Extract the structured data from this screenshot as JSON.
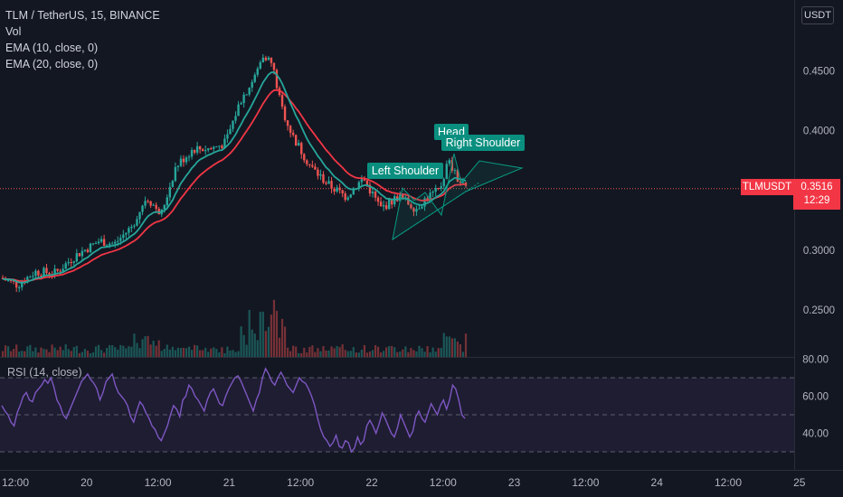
{
  "legend": {
    "symbol": "TLM / TetherUS, 15, BINANCE",
    "vol": "Vol",
    "ema10": "EMA (10, close, 0)",
    "ema20": "EMA (20, close, 0)",
    "rsi": "RSI (14, close)"
  },
  "currency_button": "USDT",
  "price_tag": {
    "symbol": "TLMUSDT",
    "price": "0.3516",
    "countdown": "12:29"
  },
  "colors": {
    "background": "#131722",
    "up": "#26a69a",
    "down": "#ef5350",
    "ema10": "#26a69a",
    "ema20": "#f23645",
    "rsi": "#7e57c2",
    "pattern": "#089981"
  },
  "chart_data": [
    {
      "type": "candlestick",
      "y_axis_ticks": [
        "0.4500",
        "0.4000",
        "0.3500",
        "0.3000",
        "0.2500"
      ],
      "ylim": [
        0.225,
        0.485
      ],
      "x_ticks": [
        "12:00",
        "20",
        "12:00",
        "21",
        "12:00",
        "22",
        "12:00",
        "23",
        "12:00",
        "24",
        "12:00",
        "25"
      ],
      "current_price": 0.3516,
      "close_path": [
        {
          "t": 0.0,
          "y": 0.277
        },
        {
          "t": 0.06,
          "y": 0.271
        },
        {
          "t": 0.12,
          "y": 0.282
        },
        {
          "t": 0.19,
          "y": 0.281
        },
        {
          "t": 0.26,
          "y": 0.296
        },
        {
          "t": 0.34,
          "y": 0.308
        },
        {
          "t": 0.39,
          "y": 0.305
        },
        {
          "t": 0.45,
          "y": 0.32
        },
        {
          "t": 0.5,
          "y": 0.345
        },
        {
          "t": 0.55,
          "y": 0.33
        },
        {
          "t": 0.6,
          "y": 0.37
        },
        {
          "t": 0.66,
          "y": 0.385
        },
        {
          "t": 0.72,
          "y": 0.385
        },
        {
          "t": 0.77,
          "y": 0.39
        },
        {
          "t": 0.82,
          "y": 0.425
        },
        {
          "t": 0.87,
          "y": 0.445
        },
        {
          "t": 0.9,
          "y": 0.465
        },
        {
          "t": 0.93,
          "y": 0.455
        },
        {
          "t": 0.96,
          "y": 0.42
        },
        {
          "t": 1.0,
          "y": 0.395
        },
        {
          "t": 1.06,
          "y": 0.37
        },
        {
          "t": 1.12,
          "y": 0.355
        },
        {
          "t": 1.18,
          "y": 0.345
        },
        {
          "t": 1.24,
          "y": 0.36
        },
        {
          "t": 1.3,
          "y": 0.335
        },
        {
          "t": 1.36,
          "y": 0.345
        },
        {
          "t": 1.42,
          "y": 0.335
        },
        {
          "t": 1.46,
          "y": 0.345
        },
        {
          "t": 1.5,
          "y": 0.35
        },
        {
          "t": 1.53,
          "y": 0.375
        },
        {
          "t": 1.56,
          "y": 0.36
        },
        {
          "t": 1.59,
          "y": 0.3516
        }
      ],
      "annotations": [
        "Left Shoulder",
        "Head",
        "Right Shoulder"
      ]
    },
    {
      "type": "line",
      "name": "RSI (14, close)",
      "y_axis_ticks": [
        "80.00",
        "60.00",
        "40.00"
      ],
      "ylim": [
        25,
        83
      ],
      "band": [
        30,
        70
      ],
      "midline": 50,
      "values": [
        55,
        52,
        50,
        46,
        44,
        51,
        55,
        60,
        62,
        58,
        57,
        62,
        64,
        66,
        69,
        67,
        70,
        65,
        58,
        55,
        50,
        48,
        52,
        56,
        60,
        64,
        68,
        70,
        72,
        69,
        67,
        64,
        58,
        62,
        68,
        70,
        72,
        66,
        62,
        60,
        58,
        55,
        49,
        46,
        52,
        57,
        55,
        51,
        48,
        44,
        42,
        38,
        36,
        40,
        44,
        50,
        55,
        53,
        49,
        58,
        60,
        66,
        64,
        60,
        58,
        55,
        52,
        58,
        62,
        64,
        60,
        56,
        55,
        60,
        64,
        67,
        70,
        71,
        68,
        64,
        60,
        56,
        52,
        58,
        62,
        70,
        75,
        72,
        68,
        66,
        70,
        73,
        70,
        66,
        64,
        62,
        66,
        70,
        68,
        67,
        64,
        60,
        55,
        48,
        42,
        38,
        36,
        33,
        35,
        39,
        33,
        32,
        36,
        35,
        30,
        32,
        38,
        34,
        36,
        44,
        47,
        44,
        40,
        45,
        51,
        48,
        44,
        40,
        38,
        43,
        50,
        46,
        42,
        38,
        41,
        49,
        52,
        48,
        46,
        51,
        56,
        53,
        50,
        55,
        58,
        53,
        58,
        66,
        64,
        58,
        50,
        48
      ]
    }
  ]
}
